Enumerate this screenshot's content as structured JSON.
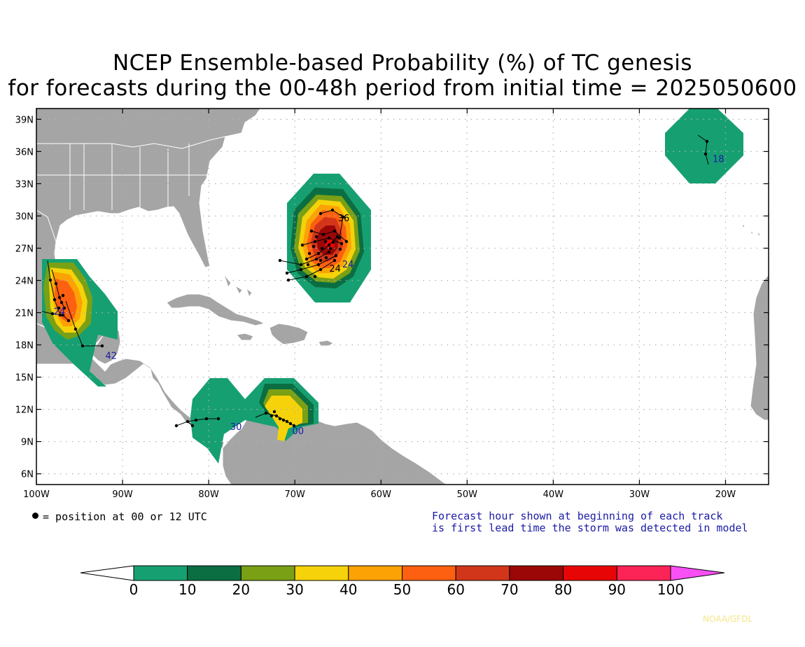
{
  "title": {
    "line1": "NCEP Ensemble-based Probability (%) of TC genesis",
    "line2": "for forecasts during the 00-48h period from initial time = 2025050600"
  },
  "map": {
    "lat_labels": [
      "39N",
      "36N",
      "33N",
      "30N",
      "27N",
      "24N",
      "21N",
      "18N",
      "15N",
      "12N",
      "9N",
      "6N"
    ],
    "lat_values": [
      39,
      36,
      33,
      30,
      27,
      24,
      21,
      18,
      15,
      12,
      9,
      6
    ],
    "lon_labels": [
      "100W",
      "90W",
      "80W",
      "70W",
      "60W",
      "50W",
      "40W",
      "30W",
      "20W"
    ],
    "lon_values": [
      -100,
      -90,
      -80,
      -70,
      -60,
      -50,
      -40,
      -30,
      -20
    ],
    "lon_range": [
      -100,
      -15
    ],
    "lat_range": [
      5,
      40
    ],
    "colors": {
      "land": "#a5a5a5",
      "ocean": "#ffffff",
      "track": "#000000",
      "hour_label": "#1a1aa6"
    },
    "track_hour_labels": [
      {
        "text": "36",
        "lon": -65,
        "lat": 29.5
      },
      {
        "text": "24",
        "lon": -64.5,
        "lat": 25.2
      },
      {
        "text": "24",
        "lon": -66,
        "lat": 24.8
      },
      {
        "text": "18",
        "lon": -21.5,
        "lat": 35
      },
      {
        "text": "42",
        "lon": -92,
        "lat": 16.7
      },
      {
        "text": "30",
        "lon": -77.5,
        "lat": 10.1
      },
      {
        "text": "24",
        "lon": -98,
        "lat": 20.8
      },
      {
        "text": "00",
        "lon": -70.3,
        "lat": 9.7
      }
    ]
  },
  "legend": {
    "dot_label": "= position at 00 or 12 UTC",
    "note_line1": "Forecast hour shown at beginning of each track",
    "note_line2": "is first lead time the storm was detected in model"
  },
  "colorbar": {
    "ticks": [
      "0",
      "10",
      "20",
      "30",
      "40",
      "50",
      "60",
      "70",
      "80",
      "90",
      "100"
    ],
    "bins": [
      {
        "from": 0,
        "to": 10,
        "color": "#16a072"
      },
      {
        "from": 10,
        "to": 20,
        "color": "#0b6e42"
      },
      {
        "from": 20,
        "to": 30,
        "color": "#7aa015"
      },
      {
        "from": 30,
        "to": 40,
        "color": "#f5d20a"
      },
      {
        "from": 40,
        "to": 50,
        "color": "#fca205"
      },
      {
        "from": 50,
        "to": 60,
        "color": "#fc6010"
      },
      {
        "from": 60,
        "to": 70,
        "color": "#d2361a"
      },
      {
        "from": 70,
        "to": 80,
        "color": "#9b0707"
      },
      {
        "from": 80,
        "to": 90,
        "color": "#e80505"
      },
      {
        "from": 90,
        "to": 100,
        "color": "#fc2456"
      }
    ],
    "below_color": "#ffffff",
    "above_color": "#f850f5"
  },
  "credit": "NOAA/GFDL"
}
